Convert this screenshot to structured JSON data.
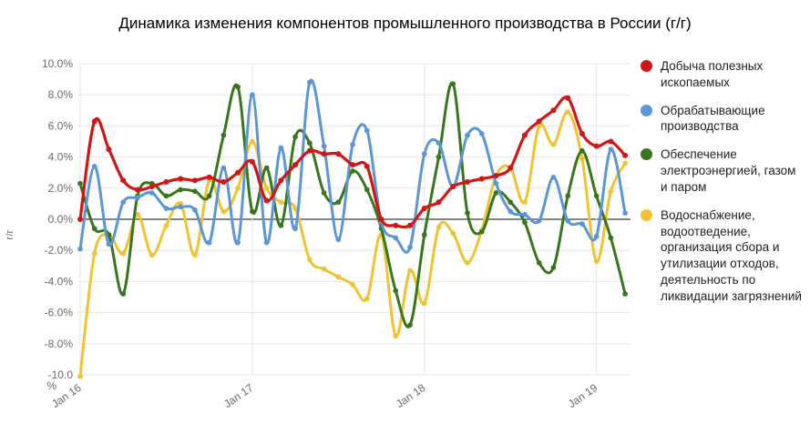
{
  "title": "Динамика изменения компонентов промышленного производства в России (г/г)",
  "y_axis": {
    "title": "г/г",
    "tick_labels": [
      "10.0%",
      "8.0%",
      "6.0%",
      "4.0%",
      "2.0%",
      "0.0%",
      "-2.0%",
      "-4.0%",
      "-6.0%",
      "-8.0%",
      "-10.0 %"
    ]
  },
  "x_axis": {
    "tick_labels": [
      "Jan 16",
      "Jan 17",
      "Jan 18",
      "Jan 19"
    ]
  },
  "colors": {
    "mining": "#d01717",
    "manufacturing": "#5b96d5",
    "electricity": "#38761d",
    "water": "#f1c232",
    "gridline": "#e6e6e6",
    "zero_line": "#3c3c3c",
    "axis_text": "#6b6b6b"
  },
  "chart_data": {
    "type": "line",
    "title": "Динамика изменения компонентов промышленного производства в России (г/г)",
    "xlabel": "",
    "ylabel": "г/г",
    "ylim": [
      -10,
      10
    ],
    "y_tick_step": 2,
    "grid": true,
    "legend_position": "right",
    "x": [
      "2016-01",
      "2016-02",
      "2016-03",
      "2016-04",
      "2016-05",
      "2016-06",
      "2016-07",
      "2016-08",
      "2016-09",
      "2016-10",
      "2016-11",
      "2016-12",
      "2017-01",
      "2017-02",
      "2017-03",
      "2017-04",
      "2017-05",
      "2017-06",
      "2017-07",
      "2017-08",
      "2017-09",
      "2017-10",
      "2017-11",
      "2017-12",
      "2018-01",
      "2018-02",
      "2018-03",
      "2018-04",
      "2018-05",
      "2018-06",
      "2018-07",
      "2018-08",
      "2018-09",
      "2018-10",
      "2018-11",
      "2018-12",
      "2019-01",
      "2019-02",
      "2019-03"
    ],
    "x_tick_positions": [
      0,
      12,
      24,
      36
    ],
    "series": [
      {
        "key": "mining",
        "name": "Добыча полезных ископаемых",
        "values": [
          0.0,
          6.3,
          4.5,
          2.5,
          1.9,
          2.1,
          2.4,
          2.6,
          2.5,
          2.7,
          2.4,
          3.0,
          3.7,
          1.2,
          2.5,
          3.5,
          4.4,
          4.2,
          4.2,
          3.5,
          3.4,
          0.0,
          -0.4,
          -0.4,
          0.7,
          1.1,
          2.1,
          2.4,
          2.6,
          2.8,
          3.3,
          5.4,
          6.3,
          7.0,
          7.8,
          5.5,
          4.7,
          5.0,
          4.1
        ]
      },
      {
        "key": "manufacturing",
        "name": "Обрабатывающие производства",
        "values": [
          -1.9,
          3.4,
          -1.6,
          1.1,
          1.4,
          1.7,
          0.7,
          0.8,
          0.6,
          -1.5,
          3.3,
          -1.5,
          8.0,
          -1.5,
          4.6,
          -0.6,
          8.8,
          4.7,
          -1.3,
          4.8,
          5.7,
          -0.2,
          -1.2,
          -1.8,
          4.2,
          4.9,
          2.1,
          5.4,
          5.5,
          2.3,
          0.5,
          0.3,
          -0.1,
          2.7,
          -0.1,
          -0.3,
          -1.1,
          4.5,
          0.4
        ]
      },
      {
        "key": "electricity",
        "name": "Обеспечение электроэнергией, газом и паром",
        "values": [
          2.3,
          -0.6,
          -1.0,
          -4.8,
          1.5,
          2.3,
          1.5,
          1.9,
          1.8,
          1.5,
          5.4,
          8.5,
          0.5,
          3.3,
          -0.4,
          5.3,
          4.9,
          1.7,
          1.1,
          3.1,
          1.9,
          -0.6,
          -4.6,
          -6.8,
          -1.0,
          4.0,
          8.7,
          0.4,
          -0.8,
          1.7,
          1.1,
          -0.2,
          -2.8,
          -3.1,
          1.5,
          4.4,
          1.5,
          -1.2,
          -4.8
        ]
      },
      {
        "key": "water",
        "name": "Водоснабжение, водоотведение, организация сбора и утилизации отходов, деятельность по ликвидации загрязнений",
        "values": [
          -10.1,
          -2.2,
          -1.0,
          -2.2,
          0.3,
          -2.3,
          -0.4,
          1.0,
          -2.3,
          2.5,
          0.5,
          2.0,
          5.0,
          2.0,
          1.1,
          0.7,
          -2.6,
          -3.2,
          -3.7,
          -4.2,
          -5.1,
          -1.0,
          -7.5,
          -3.3,
          -5.4,
          -0.5,
          -0.9,
          -2.8,
          -0.7,
          2.8,
          3.3,
          1.1,
          6.0,
          4.8,
          6.9,
          3.9,
          -2.7,
          1.8,
          3.6
        ]
      }
    ]
  }
}
